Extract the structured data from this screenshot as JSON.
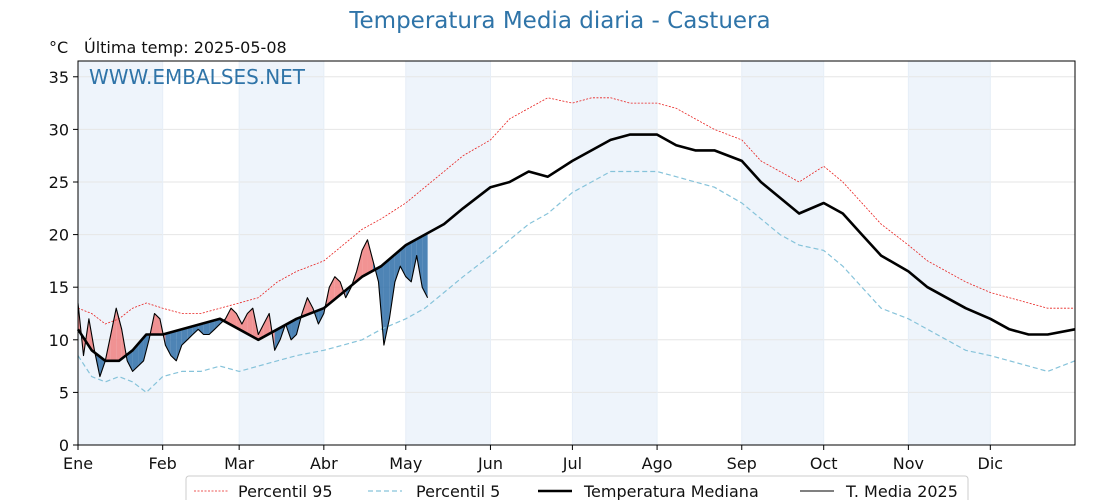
{
  "title": "Temperatura Media diaria - Castuera",
  "unit": "°C",
  "last_temp": "Última temp: 2025-05-08",
  "watermark": "WWW.EMBALSES.NET",
  "colors": {
    "p95": "#e8211f",
    "p5": "#86c3da",
    "median": "#000000",
    "t2025": "#000000",
    "above": "#f08080",
    "below": "#2f6fa8",
    "band": "#eef4fb"
  },
  "chart_data": {
    "type": "line",
    "ylim": [
      0,
      36.5
    ],
    "yticks": [
      0,
      5,
      10,
      15,
      20,
      25,
      30,
      35
    ],
    "xlim": [
      0,
      365
    ],
    "months": [
      {
        "label": "Ene",
        "day": 0
      },
      {
        "label": "Feb",
        "day": 31
      },
      {
        "label": "Mar",
        "day": 59
      },
      {
        "label": "Abr",
        "day": 90
      },
      {
        "label": "May",
        "day": 120
      },
      {
        "label": "Jun",
        "day": 151
      },
      {
        "label": "Jul",
        "day": 181
      },
      {
        "label": "Ago",
        "day": 212
      },
      {
        "label": "Sep",
        "day": 243
      },
      {
        "label": "Oct",
        "day": 273
      },
      {
        "label": "Nov",
        "day": 304
      },
      {
        "label": "Dic",
        "day": 334
      }
    ],
    "series": [
      {
        "name": "Percentil 95",
        "key": "p95",
        "x": [
          0,
          5,
          10,
          15,
          20,
          25,
          31,
          38,
          45,
          52,
          59,
          66,
          73,
          80,
          90,
          97,
          104,
          111,
          120,
          127,
          134,
          141,
          151,
          158,
          165,
          172,
          181,
          188,
          195,
          202,
          212,
          219,
          226,
          233,
          243,
          250,
          257,
          264,
          273,
          280,
          287,
          294,
          304,
          311,
          318,
          325,
          334,
          341,
          348,
          355,
          365
        ],
        "y": [
          13,
          12.5,
          11.5,
          12,
          13,
          13.5,
          13,
          12.5,
          12.5,
          13,
          13.5,
          14,
          15.5,
          16.5,
          17.5,
          19,
          20.5,
          21.5,
          23,
          24.5,
          26,
          27.5,
          29,
          31,
          32,
          33,
          32.5,
          33,
          33,
          32.5,
          32.5,
          32,
          31,
          30,
          29,
          27,
          26,
          25,
          26.5,
          25,
          23,
          21,
          19,
          17.5,
          16.5,
          15.5,
          14.5,
          14,
          13.5,
          13,
          13
        ]
      },
      {
        "name": "Percentil 5",
        "key": "p5",
        "x": [
          0,
          5,
          10,
          15,
          20,
          25,
          31,
          38,
          45,
          52,
          59,
          66,
          73,
          80,
          90,
          97,
          104,
          111,
          120,
          127,
          134,
          141,
          151,
          158,
          165,
          172,
          181,
          188,
          195,
          202,
          212,
          219,
          226,
          233,
          243,
          250,
          257,
          264,
          273,
          280,
          287,
          294,
          304,
          311,
          318,
          325,
          334,
          341,
          348,
          355,
          365
        ],
        "y": [
          8.5,
          6.5,
          6,
          6.5,
          6,
          5,
          6.5,
          7,
          7,
          7.5,
          7,
          7.5,
          8,
          8.5,
          9,
          9.5,
          10,
          11,
          12,
          13,
          14.5,
          16,
          18,
          19.5,
          21,
          22,
          24,
          25,
          26,
          26,
          26,
          25.5,
          25,
          24.5,
          23,
          21.5,
          20,
          19,
          18.5,
          17,
          15,
          13,
          12,
          11,
          10,
          9,
          8.5,
          8,
          7.5,
          7,
          8
        ]
      },
      {
        "name": "Temperatura Mediana",
        "key": "median",
        "x": [
          0,
          5,
          10,
          15,
          20,
          25,
          31,
          38,
          45,
          52,
          59,
          66,
          73,
          80,
          90,
          97,
          104,
          111,
          120,
          127,
          134,
          141,
          151,
          158,
          165,
          172,
          181,
          188,
          195,
          202,
          212,
          219,
          226,
          233,
          243,
          250,
          257,
          264,
          273,
          280,
          287,
          294,
          304,
          311,
          318,
          325,
          334,
          341,
          348,
          355,
          365
        ],
        "y": [
          11,
          9,
          8,
          8,
          9,
          10.5,
          10.5,
          11,
          11.5,
          12,
          11,
          10,
          11,
          12,
          13,
          14.5,
          16,
          17,
          19,
          20,
          21,
          22.5,
          24.5,
          25,
          26,
          25.5,
          27,
          28,
          29,
          29.5,
          29.5,
          28.5,
          28,
          28,
          27,
          25,
          23.5,
          22,
          23,
          22,
          20,
          18,
          16.5,
          15,
          14,
          13,
          12,
          11,
          10.5,
          10.5,
          11
        ]
      },
      {
        "name": "T. Media 2025",
        "key": "t2025",
        "x": [
          0,
          2,
          4,
          6,
          8,
          10,
          12,
          14,
          16,
          18,
          20,
          22,
          24,
          26,
          28,
          30,
          32,
          34,
          36,
          38,
          40,
          42,
          44,
          46,
          48,
          50,
          52,
          54,
          56,
          58,
          60,
          62,
          64,
          66,
          68,
          70,
          72,
          74,
          76,
          78,
          80,
          82,
          84,
          86,
          88,
          90,
          92,
          94,
          96,
          98,
          100,
          102,
          104,
          106,
          108,
          110,
          112,
          114,
          116,
          118,
          120,
          122,
          124,
          126,
          128
        ],
        "y": [
          13.5,
          8.5,
          12,
          9,
          6.5,
          8,
          10.5,
          13,
          11,
          8,
          7,
          7.5,
          8,
          10,
          12.5,
          12,
          9.5,
          8.5,
          8,
          9.5,
          10,
          10.5,
          11,
          10.5,
          10.5,
          11,
          11.5,
          12,
          13,
          12.5,
          11.5,
          12.5,
          13,
          10.5,
          11.5,
          12.5,
          9,
          10,
          11.5,
          10,
          10.5,
          12.5,
          14,
          13,
          11.5,
          12.5,
          15,
          16,
          15.5,
          14,
          15,
          16.5,
          18.5,
          19.5,
          17.5,
          15.5,
          9.5,
          12,
          15.5,
          17,
          16,
          15.5,
          18,
          15,
          14
        ]
      }
    ]
  },
  "legend": [
    {
      "label": "Percentil 95",
      "key": "p95"
    },
    {
      "label": "Percentil 5",
      "key": "p5"
    },
    {
      "label": "Temperatura Mediana",
      "key": "median"
    },
    {
      "label": "T. Media 2025",
      "key": "t2025"
    }
  ]
}
